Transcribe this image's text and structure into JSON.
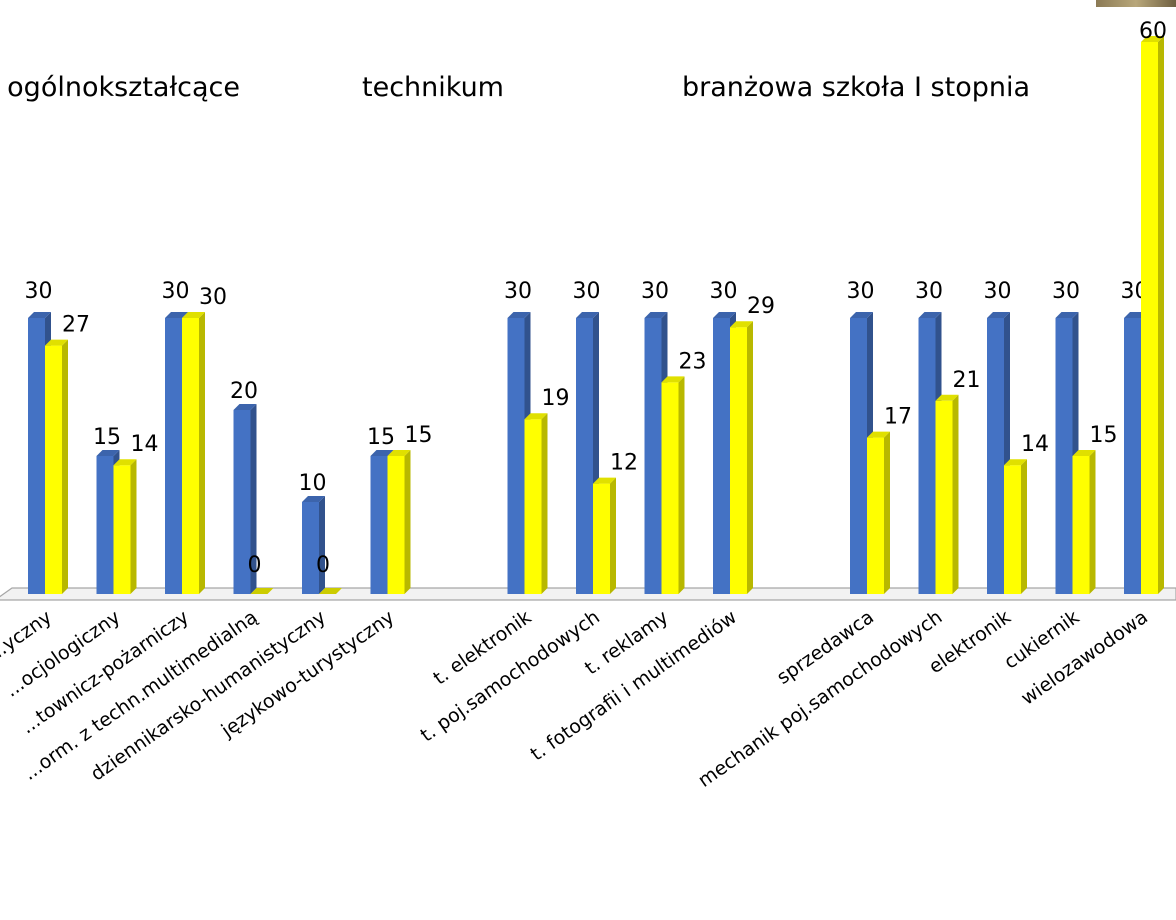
{
  "chart_data": {
    "type": "bar",
    "groups": [
      {
        "label": "ogólnokształcące",
        "categories": [
          "...yczny",
          "...ocjologiczny",
          "...townicz‑pożarniczy",
          "...orm. z techn.multimedialną",
          "dziennikarsko-humanistyczny",
          "językowo-turystyczny"
        ]
      },
      {
        "label": "technikum",
        "categories": [
          "t. elektronik",
          "t. poj.samochodowych",
          "t. reklamy",
          "t. fotografii i multimediów"
        ]
      },
      {
        "label": "branżowa szkoła I stopnia",
        "categories": [
          "sprzedawca",
          "mechanik poj.samochodowych",
          "elektronik",
          "cukiernik",
          "wielozawodowa"
        ]
      }
    ],
    "categories": [
      "...yczny",
      "...ocjologiczny",
      "...townicz‑pożarniczy",
      "...orm. z techn.multimedialną",
      "dziennikarsko-humanistyczny",
      "językowo-turystyczny",
      "t. elektronik",
      "t. poj.samochodowych",
      "t. reklamy",
      "t. fotografii i multimediów",
      "sprzedawca",
      "mechanik poj.samochodowych",
      "elektronik",
      "cukiernik",
      "wielozawodowa"
    ],
    "series": [
      {
        "values": [
          30,
          15,
          30,
          20,
          10,
          15,
          30,
          30,
          30,
          30,
          30,
          30,
          30,
          30,
          30
        ],
        "color": "#4472C4"
      },
      {
        "values": [
          27,
          14,
          30,
          0,
          0,
          15,
          19,
          12,
          23,
          29,
          17,
          21,
          14,
          15,
          60
        ],
        "color": "#FFFF00"
      }
    ],
    "ylim": [
      0,
      60
    ],
    "grid": false,
    "legend": "none"
  }
}
